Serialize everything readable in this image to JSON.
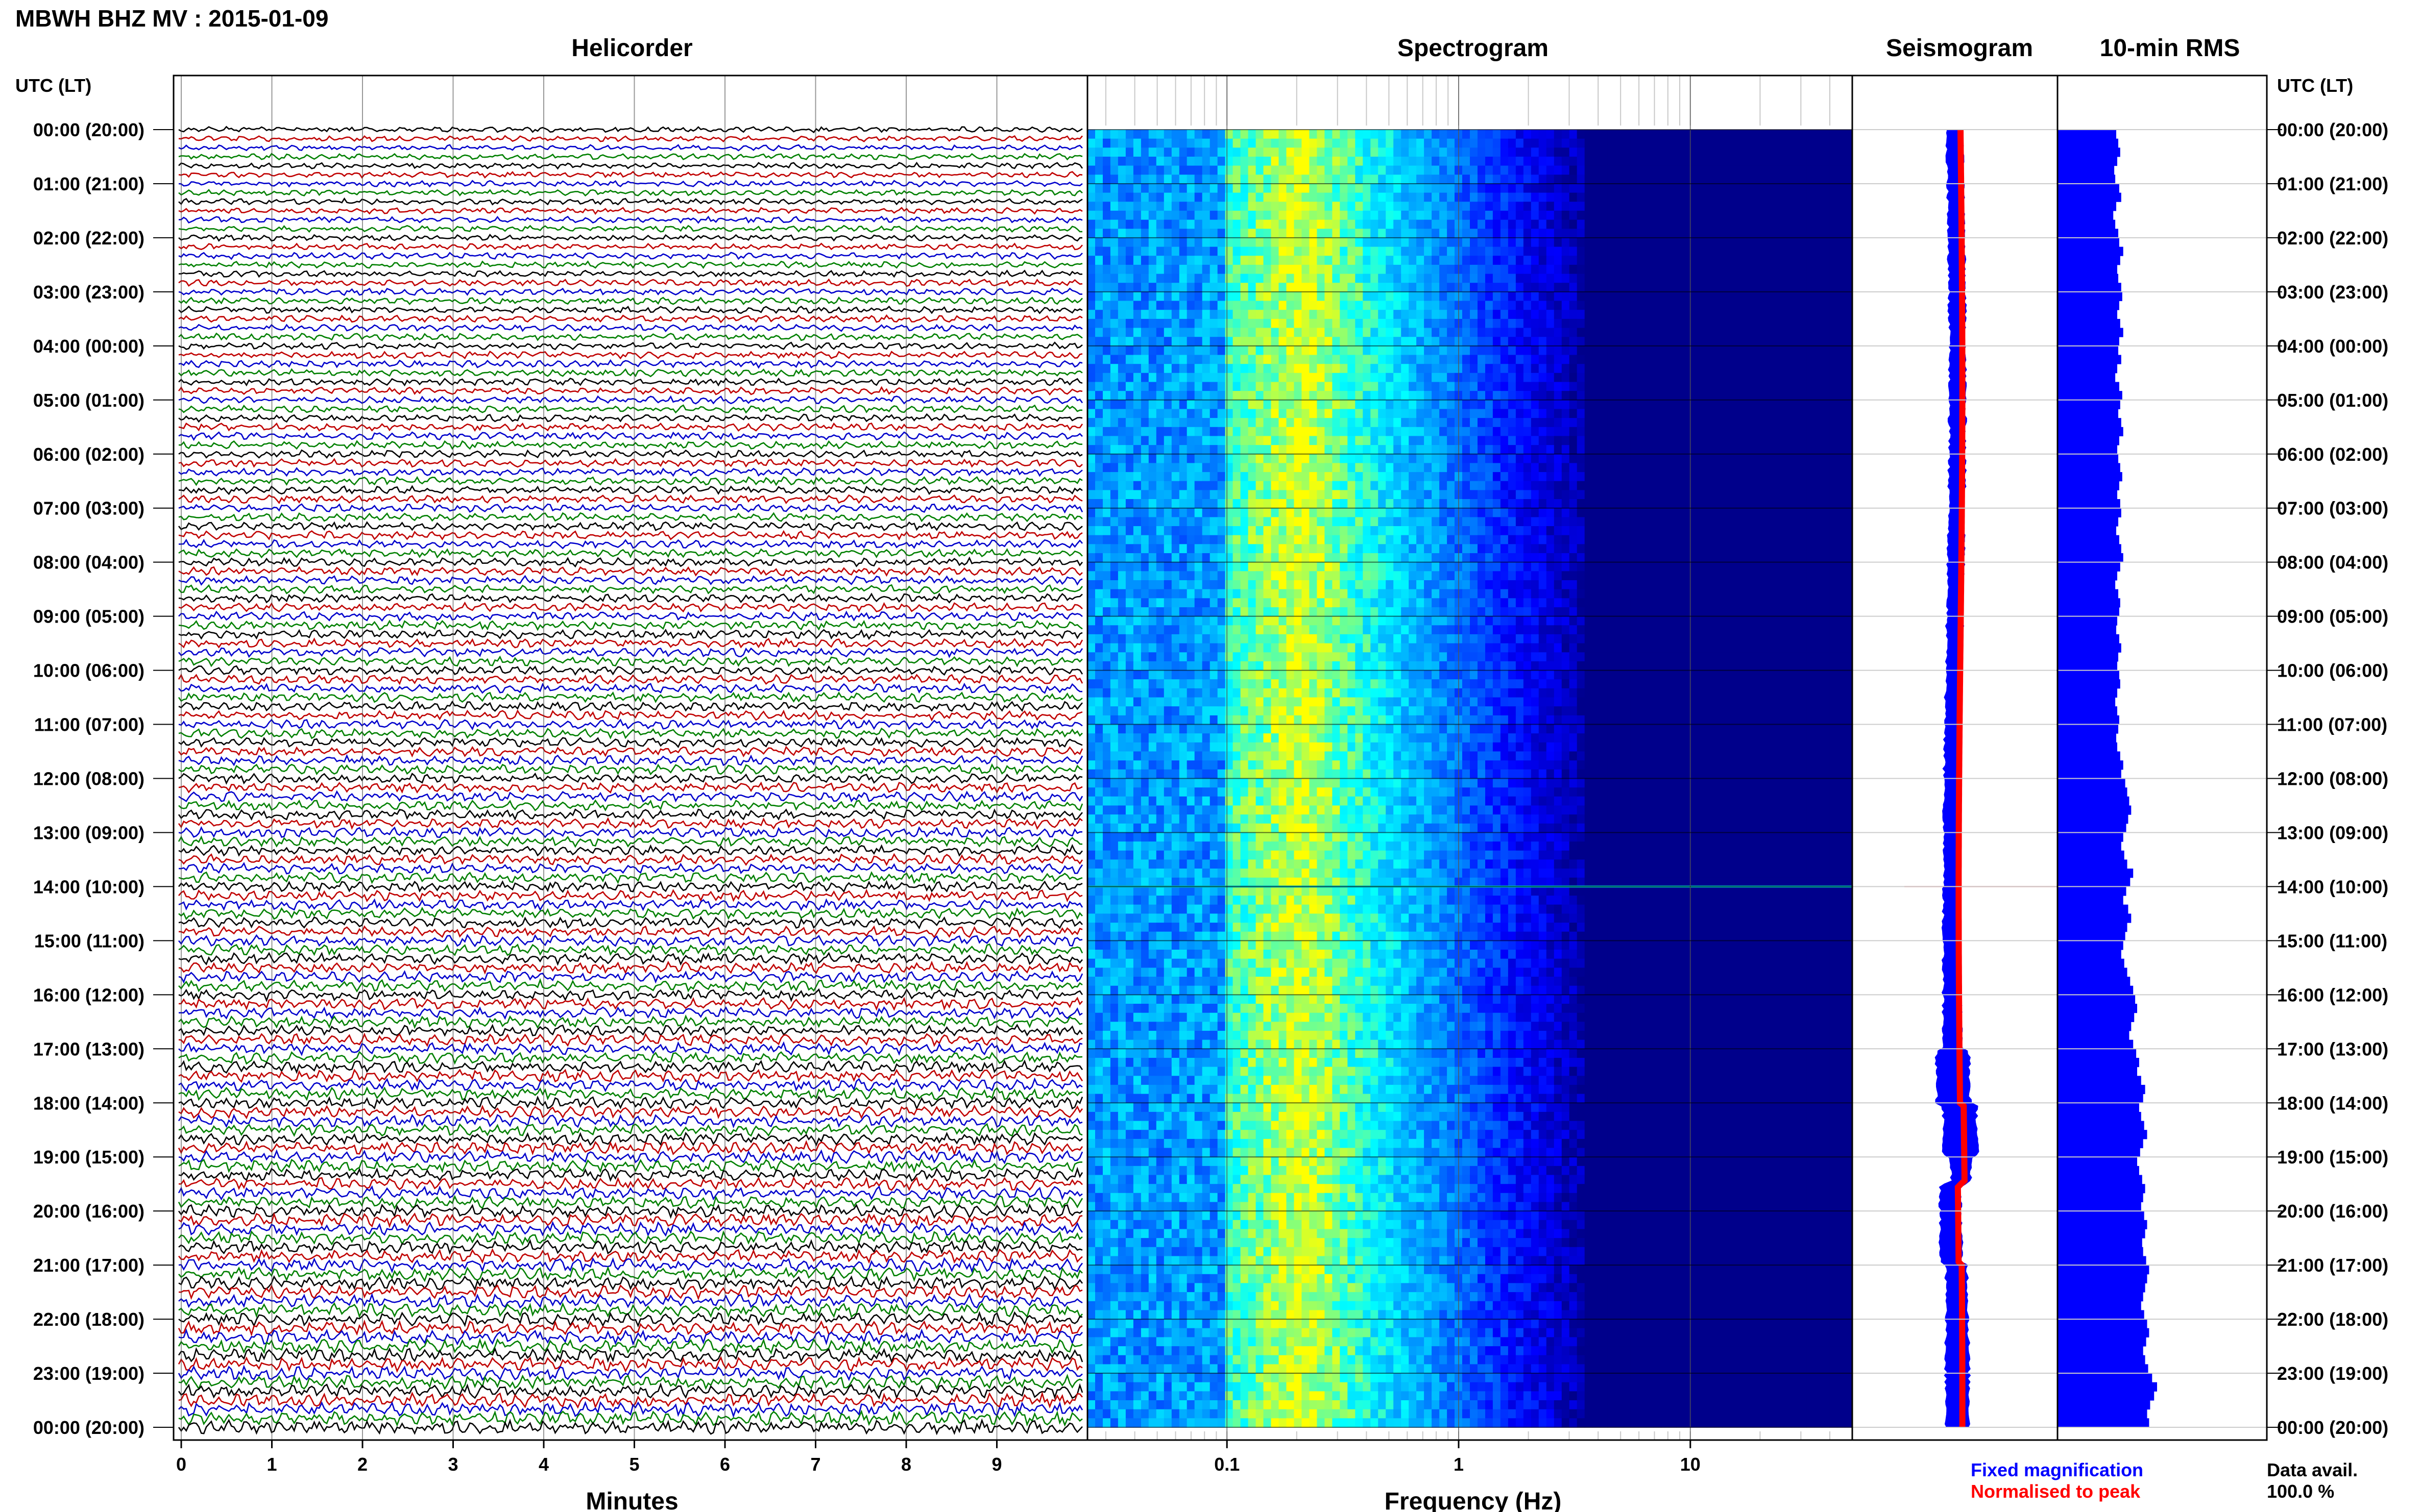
{
  "chart_data": {
    "type": "seismic_daily_summary",
    "title": "MBWH BHZ MV : 2015-01-09",
    "panels": {
      "helicorder": {
        "title": "Helicorder",
        "xlabel": "Minutes",
        "x_ticks": [
          "0",
          "1",
          "2",
          "3",
          "4",
          "5",
          "6",
          "7",
          "8",
          "9"
        ],
        "xlim": [
          0,
          10
        ],
        "rows_per_hour": 6,
        "trace_colors": [
          "#000000",
          "#c00000",
          "#0000cc",
          "#008000"
        ]
      },
      "spectrogram": {
        "title": "Spectrogram",
        "xlabel": "Frequency (Hz)",
        "x_scale": "log",
        "x_ticks": [
          "0.1",
          "1",
          "10"
        ],
        "xlim": [
          0.025,
          50
        ],
        "dominant_band_hz": [
          0.15,
          0.3
        ],
        "colormap": [
          "#00008b",
          "#0000ff",
          "#0080ff",
          "#00ffff",
          "#ffff00"
        ]
      },
      "seismogram": {
        "title": "Seismogram",
        "legend": [
          {
            "label": "Fixed magnification",
            "color": "#0000ff"
          },
          {
            "label": "Normalised to peak",
            "color": "#ff0000"
          }
        ]
      },
      "rms": {
        "title": "10-min RMS",
        "color": "#0000ff"
      }
    },
    "y_axis": {
      "label": "UTC (LT)",
      "ticks": [
        "00:00 (20:00)",
        "01:00 (21:00)",
        "02:00 (22:00)",
        "03:00 (23:00)",
        "04:00 (00:00)",
        "05:00 (01:00)",
        "06:00 (02:00)",
        "07:00 (03:00)",
        "08:00 (04:00)",
        "09:00 (05:00)",
        "10:00 (06:00)",
        "11:00 (07:00)",
        "12:00 (08:00)",
        "13:00 (09:00)",
        "14:00 (10:00)",
        "15:00 (11:00)",
        "16:00 (12:00)",
        "17:00 (13:00)",
        "18:00 (14:00)",
        "19:00 (15:00)",
        "20:00 (16:00)",
        "21:00 (17:00)",
        "22:00 (18:00)",
        "23:00 (19:00)",
        "00:00 (20:00)"
      ]
    },
    "rms_10min": [
      0.59,
      0.61,
      0.63,
      0.6,
      0.57,
      0.58,
      0.62,
      0.64,
      0.59,
      0.56,
      0.58,
      0.61,
      0.62,
      0.66,
      0.63,
      0.6,
      0.61,
      0.64,
      0.65,
      0.62,
      0.6,
      0.63,
      0.66,
      0.62,
      0.61,
      0.64,
      0.6,
      0.58,
      0.62,
      0.65,
      0.63,
      0.61,
      0.64,
      0.66,
      0.62,
      0.6,
      0.61,
      0.63,
      0.65,
      0.62,
      0.6,
      0.63,
      0.64,
      0.61,
      0.59,
      0.62,
      0.64,
      0.66,
      0.63,
      0.6,
      0.58,
      0.61,
      0.63,
      0.62,
      0.6,
      0.59,
      0.62,
      0.64,
      0.61,
      0.6,
      0.62,
      0.63,
      0.6,
      0.58,
      0.6,
      0.62,
      0.61,
      0.59,
      0.6,
      0.63,
      0.66,
      0.64,
      0.68,
      0.7,
      0.72,
      0.74,
      0.71,
      0.69,
      0.66,
      0.64,
      0.67,
      0.7,
      0.76,
      0.73,
      0.69,
      0.66,
      0.71,
      0.74,
      0.7,
      0.68,
      0.66,
      0.64,
      0.67,
      0.7,
      0.73,
      0.76,
      0.78,
      0.8,
      0.77,
      0.74,
      0.72,
      0.76,
      0.79,
      0.82,
      0.8,
      0.84,
      0.88,
      0.86,
      0.82,
      0.84,
      0.87,
      0.9,
      0.86,
      0.83,
      0.8,
      0.82,
      0.85,
      0.88,
      0.86,
      0.84,
      0.87,
      0.9,
      0.88,
      0.85,
      0.86,
      0.89,
      0.92,
      0.9,
      0.88,
      0.86,
      0.84,
      0.87,
      0.9,
      0.92,
      0.89,
      0.86,
      0.88,
      0.91,
      0.95,
      1.0,
      0.97,
      0.93,
      0.9,
      0.92
    ],
    "data_availability": {
      "label": "Data avail.",
      "value": "100.0 %"
    }
  }
}
